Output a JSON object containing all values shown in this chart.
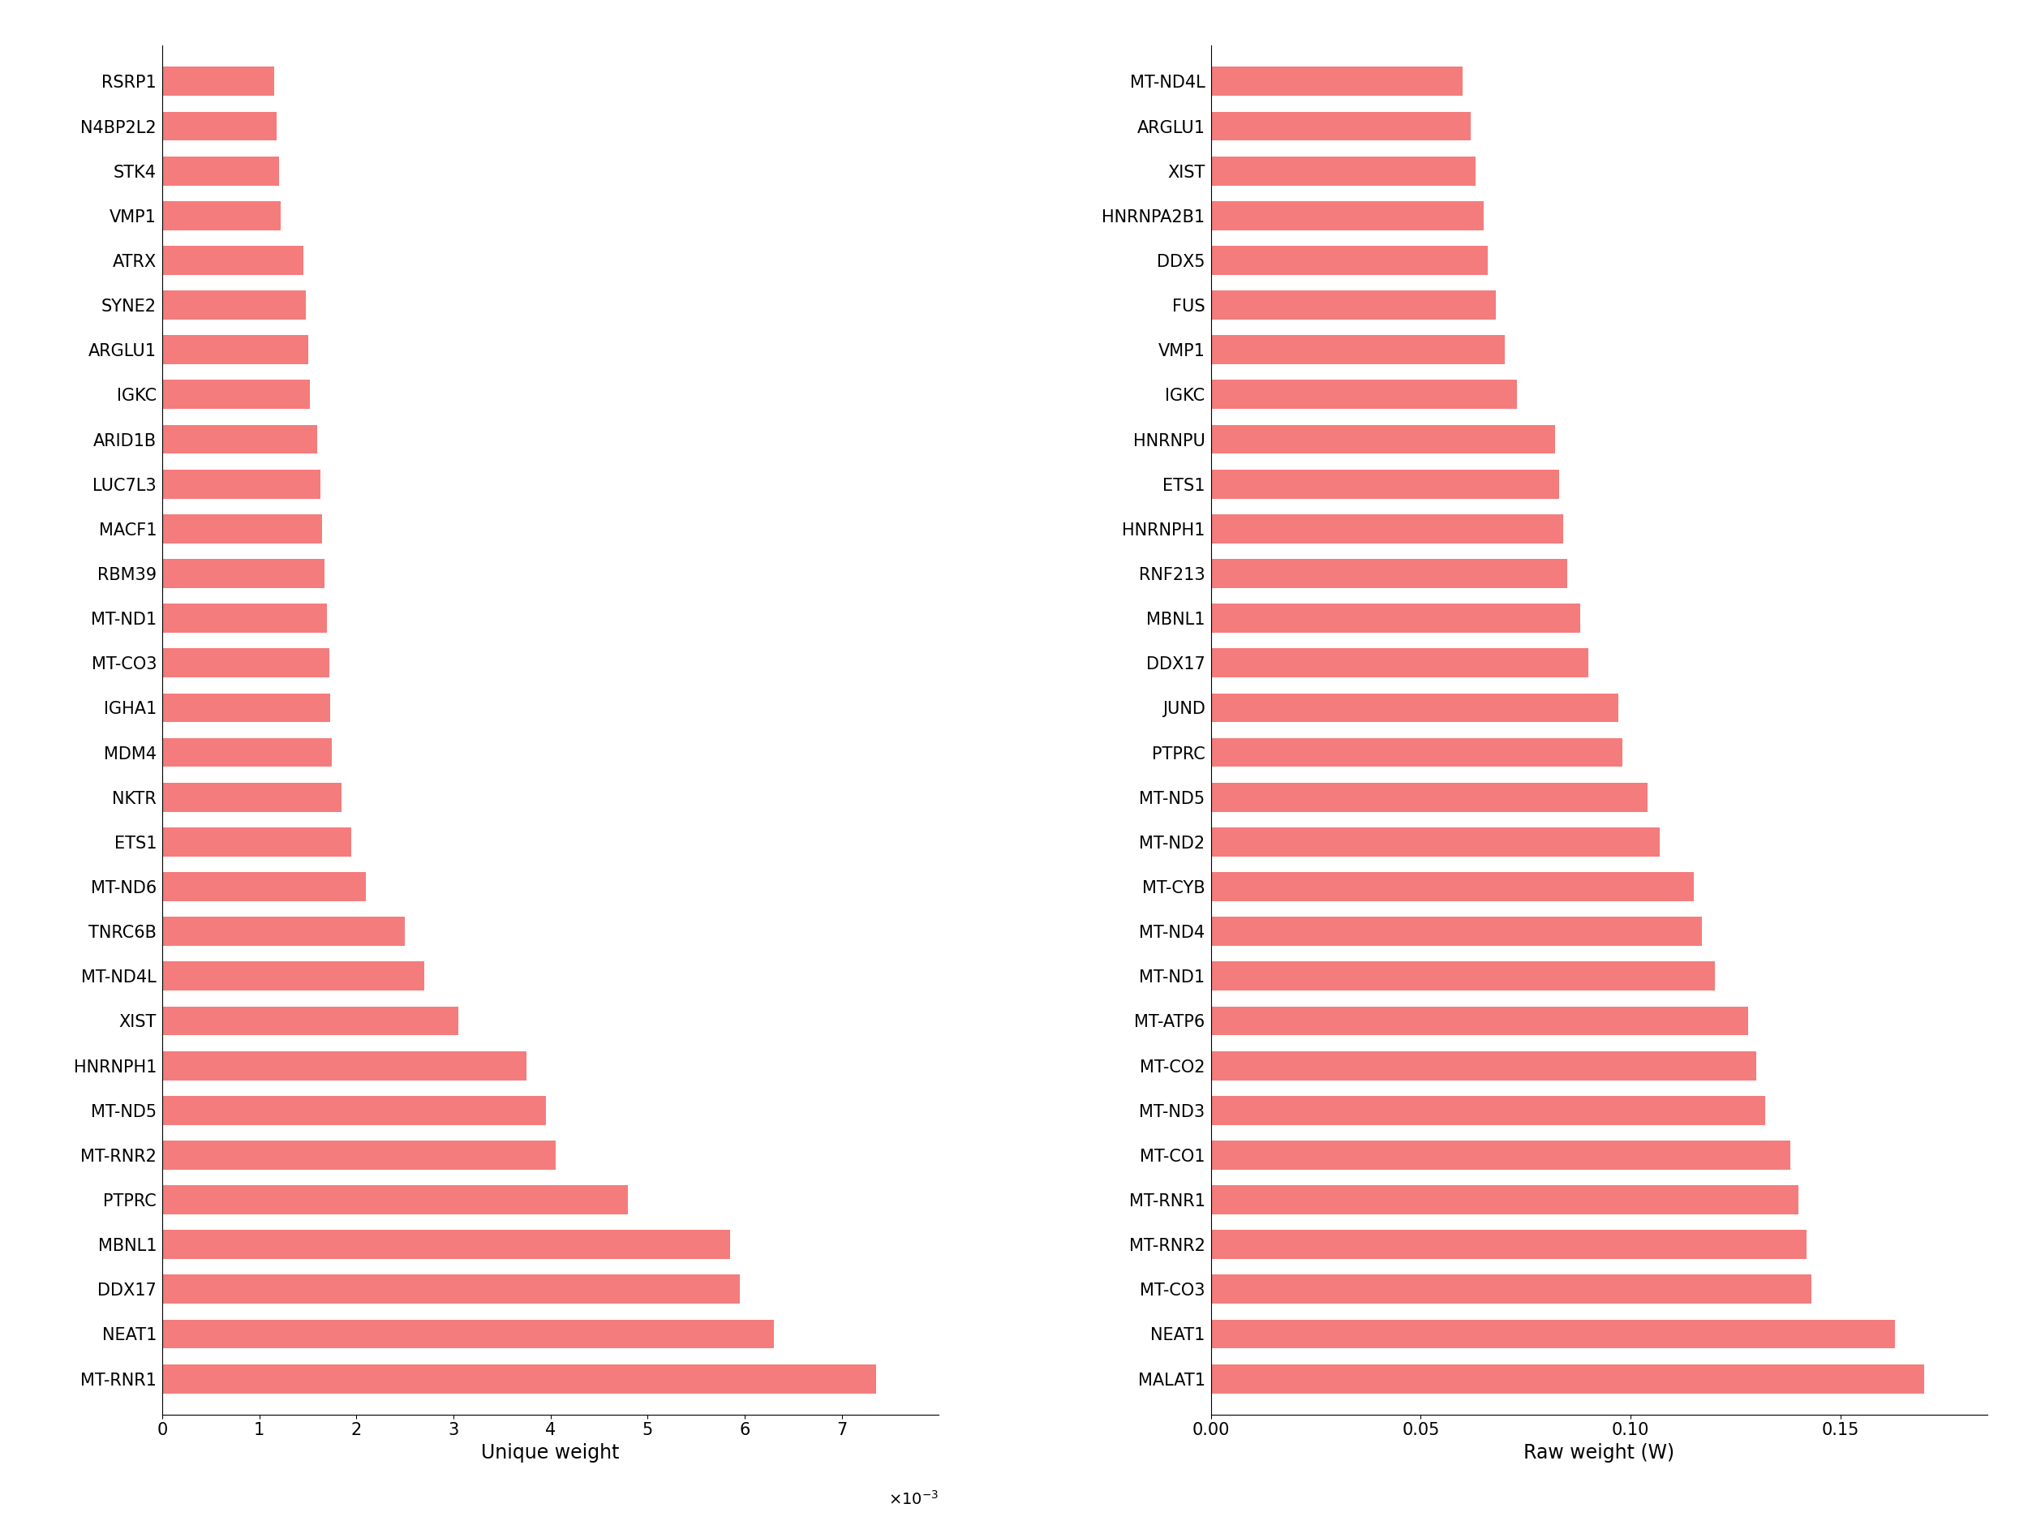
{
  "left_labels": [
    "RSRP1",
    "N4BP2L2",
    "STK4",
    "VMP1",
    "ATRX",
    "SYNE2",
    "ARGLU1",
    "IGKC",
    "ARID1B",
    "LUC7L3",
    "MACF1",
    "RBM39",
    "MT-ND1",
    "MT-CO3",
    "IGHA1",
    "MDM4",
    "NKTR",
    "ETS1",
    "MT-ND6",
    "TNRC6B",
    "MT-ND4L",
    "XIST",
    "HNRNPH1",
    "MT-ND5",
    "MT-RNR2",
    "PTPRC",
    "MBNL1",
    "DDX17",
    "NEAT1",
    "MT-RNR1"
  ],
  "left_values": [
    0.00115,
    0.00118,
    0.0012,
    0.00122,
    0.00145,
    0.00148,
    0.0015,
    0.00152,
    0.0016,
    0.00163,
    0.00165,
    0.00167,
    0.0017,
    0.00172,
    0.00173,
    0.00175,
    0.00185,
    0.00195,
    0.0021,
    0.0025,
    0.0027,
    0.00305,
    0.00375,
    0.00395,
    0.00405,
    0.0048,
    0.00585,
    0.00595,
    0.0063,
    0.00735
  ],
  "right_labels": [
    "MT-ND4L",
    "ARGLU1",
    "XIST",
    "HNRNPA2B1",
    "DDX5",
    "FUS",
    "VMP1",
    "IGKC",
    "HNRNPU",
    "ETS1",
    "HNRNPH1",
    "RNF213",
    "MBNL1",
    "DDX17",
    "JUND",
    "PTPRC",
    "MT-ND5",
    "MT-ND2",
    "MT-CYB",
    "MT-ND4",
    "MT-ND1",
    "MT-ATP6",
    "MT-CO2",
    "MT-ND3",
    "MT-CO1",
    "MT-RNR1",
    "MT-RNR2",
    "MT-CO3",
    "NEAT1",
    "MALAT1"
  ],
  "right_values": [
    0.06,
    0.062,
    0.063,
    0.065,
    0.066,
    0.068,
    0.07,
    0.073,
    0.082,
    0.083,
    0.084,
    0.085,
    0.088,
    0.09,
    0.097,
    0.098,
    0.104,
    0.107,
    0.115,
    0.117,
    0.12,
    0.128,
    0.13,
    0.132,
    0.138,
    0.14,
    0.142,
    0.143,
    0.163,
    0.17
  ],
  "bar_color": "#F47C7C",
  "xlabel_left": "Unique weight",
  "xlabel_right": "Raw weight (W)",
  "xlim_left": [
    0,
    0.008
  ],
  "xticks_left": [
    0,
    0.001,
    0.002,
    0.003,
    0.004,
    0.005,
    0.006,
    0.007
  ],
  "xticklabels_left": [
    "0",
    "1",
    "2",
    "3",
    "4",
    "5",
    "6",
    "7"
  ],
  "xlim_right": [
    0,
    0.185
  ],
  "xticks_right": [
    0,
    0.05,
    0.1,
    0.15
  ],
  "bg_color": "#FFFFFF",
  "bar_height": 0.65,
  "label_fontsize": 15,
  "tick_fontsize": 15,
  "xlabel_fontsize": 17
}
